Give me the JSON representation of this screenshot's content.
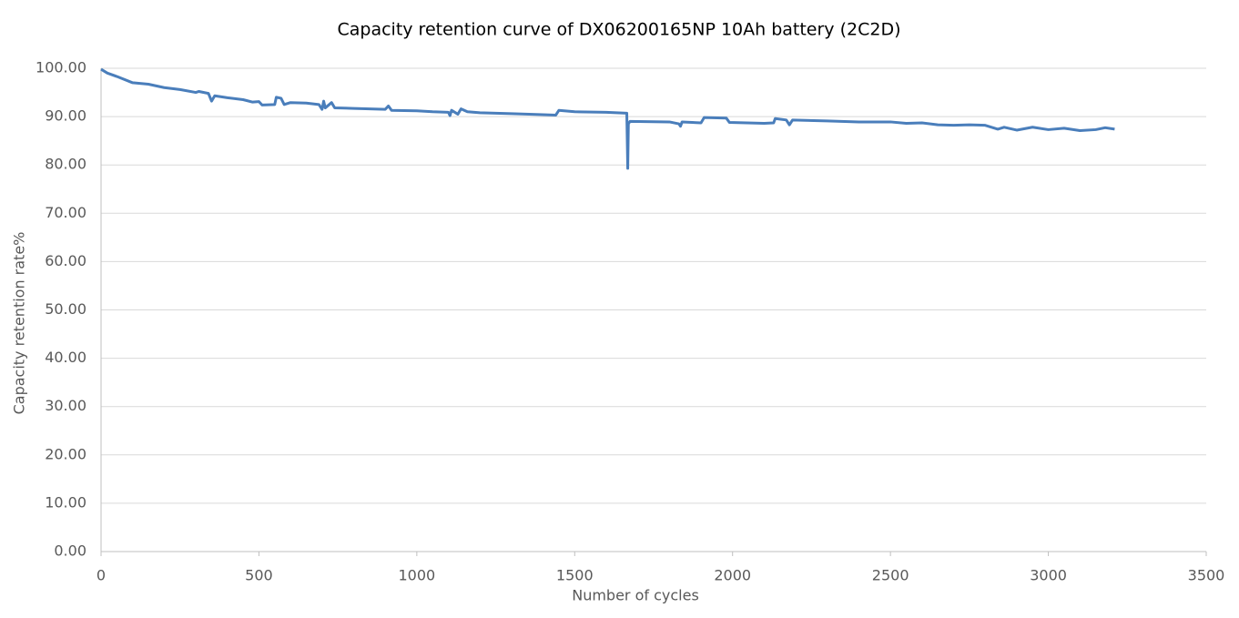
{
  "chart_data": {
    "type": "line",
    "title": "Capacity retention curve of DX06200165NP 10Ah battery (2C2D)",
    "x_label": "Number of cycles",
    "y_label": "Capacity retention rate%",
    "grid": true,
    "xlim": [
      0,
      3500
    ],
    "xticks": [
      0,
      500,
      1000,
      1500,
      2000,
      2500,
      3000,
      3500
    ],
    "ylim": [
      0,
      100
    ],
    "yticks": [
      {
        "value": 0,
        "label": "0.00"
      },
      {
        "value": 10,
        "label": "10.00"
      },
      {
        "value": 20,
        "label": "20.00"
      },
      {
        "value": 30,
        "label": "30.00"
      },
      {
        "value": 40,
        "label": "40.00"
      },
      {
        "value": 50,
        "label": "50.00"
      },
      {
        "value": 60,
        "label": "60.00"
      },
      {
        "value": 70,
        "label": "70.00"
      },
      {
        "value": 80,
        "label": "80.00"
      },
      {
        "value": 90,
        "label": "90.00"
      },
      {
        "value": 100,
        "label": "100.00"
      }
    ],
    "x": [
      0,
      20,
      50,
      100,
      150,
      200,
      250,
      300,
      310,
      340,
      350,
      360,
      400,
      450,
      480,
      500,
      510,
      550,
      555,
      570,
      580,
      600,
      650,
      690,
      700,
      705,
      710,
      730,
      740,
      800,
      900,
      910,
      920,
      1000,
      1050,
      1100,
      1105,
      1110,
      1130,
      1140,
      1160,
      1200,
      1300,
      1400,
      1440,
      1450,
      1500,
      1600,
      1665,
      1668,
      1670,
      1675,
      1800,
      1830,
      1835,
      1840,
      1900,
      1910,
      1980,
      1990,
      2100,
      2130,
      2135,
      2170,
      2180,
      2190,
      2300,
      2400,
      2500,
      2550,
      2600,
      2650,
      2700,
      2750,
      2800,
      2840,
      2860,
      2900,
      2950,
      3000,
      3050,
      3100,
      3150,
      3180,
      3210
    ],
    "series": [
      {
        "name": "Capacity retention",
        "color": "#4a7ebb",
        "values": [
          99.8,
          99.0,
          98.3,
          97.0,
          96.7,
          96.0,
          95.6,
          95.0,
          95.2,
          94.8,
          93.2,
          94.3,
          93.9,
          93.5,
          93.0,
          93.1,
          92.4,
          92.5,
          94.0,
          93.8,
          92.5,
          92.9,
          92.8,
          92.5,
          91.5,
          93.2,
          91.8,
          92.9,
          91.8,
          91.7,
          91.5,
          92.2,
          91.3,
          91.2,
          91.0,
          90.9,
          90.2,
          91.3,
          90.5,
          91.6,
          91.0,
          90.8,
          90.6,
          90.4,
          90.3,
          91.3,
          91.0,
          90.9,
          90.7,
          79.3,
          88.5,
          89.0,
          88.9,
          88.5,
          88.0,
          88.9,
          88.7,
          89.8,
          89.7,
          88.8,
          88.6,
          88.7,
          89.6,
          89.3,
          88.3,
          89.3,
          89.1,
          88.9,
          88.9,
          88.6,
          88.7,
          88.3,
          88.2,
          88.3,
          88.2,
          87.4,
          87.8,
          87.2,
          87.8,
          87.3,
          87.6,
          87.1,
          87.3,
          87.7,
          87.4
        ]
      }
    ]
  }
}
